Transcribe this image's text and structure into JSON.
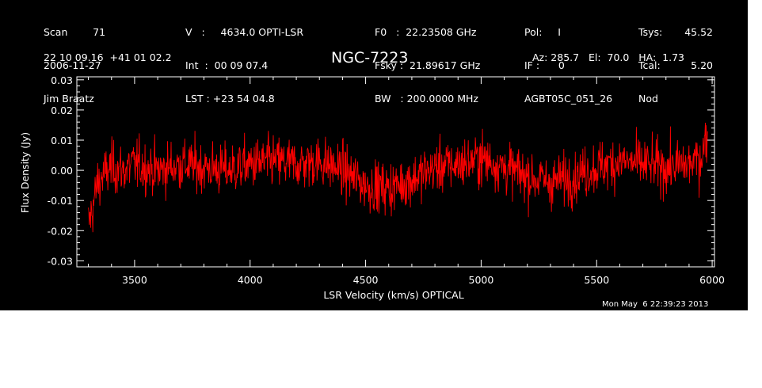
{
  "header": {
    "col1": [
      "Scan        71",
      "2006-11-27",
      "Jim Braatz"
    ],
    "col2": [
      "V   :     4634.0 OPTI-LSR",
      "Int  :  00 09 07.4",
      "LST : +23 54 04.8"
    ],
    "col3": [
      "F0   :  22.23508 GHz",
      "Fsky :  21.89617 GHz",
      "BW   : 200.0000 MHz"
    ],
    "col4": [
      "Pol:     I",
      "IF :      0",
      "AGBT05C_051_26"
    ],
    "col5_labels": [
      "Tsys:",
      "Tcal:",
      "Nod"
    ],
    "col5_values": [
      "45.52",
      "5.20",
      ""
    ],
    "coords": "22 10 09.16  +41 01 02.2",
    "title": "NGC-7223",
    "azelha": "Az: 285.7   El:  70.0   HA:  1.73"
  },
  "footer": {
    "timestamp": "Mon May  6 22:39:23 2013"
  },
  "colors": {
    "background": "#000000",
    "foreground": "#ffffff",
    "series": "#ff0000"
  },
  "chart_data": {
    "type": "line",
    "title": "NGC-7223",
    "xlabel": "LSR Velocity (km/s) OPTICAL",
    "ylabel": "Flux Density (Jy)",
    "xlim": [
      3250,
      6010
    ],
    "ylim": [
      -0.032,
      0.031
    ],
    "x_ticks": [
      3500,
      4000,
      4500,
      5000,
      5500,
      6000
    ],
    "y_ticks": [
      -0.03,
      -0.02,
      -0.01,
      0.0,
      0.01,
      0.02,
      0.03
    ],
    "x_tick_labels": [
      "3500",
      "4000",
      "4500",
      "5000",
      "5500",
      "6000"
    ],
    "y_tick_labels": [
      "-0.03",
      "-0.02",
      "-0.01",
      "0.00",
      "0.01",
      "0.02",
      "0.03"
    ],
    "grid": false,
    "series": [
      {
        "x": [
          3300,
          3320,
          3340,
          3400,
          3450,
          3500,
          3600,
          3700,
          3800,
          3900,
          4000,
          4100,
          4200,
          4300,
          4400,
          4500,
          4600,
          4700,
          4800,
          4900,
          5000,
          5100,
          5200,
          5300,
          5400,
          5500,
          5600,
          5700,
          5800,
          5900,
          5950,
          5980
        ],
        "y": [
          -0.018,
          -0.012,
          -0.004,
          0.001,
          0.0,
          0.002,
          0.0,
          0.002,
          0.001,
          0.0,
          0.002,
          0.003,
          0.002,
          0.003,
          0.0,
          -0.005,
          -0.006,
          -0.003,
          0.001,
          0.002,
          0.004,
          0.001,
          -0.002,
          -0.004,
          -0.002,
          0.001,
          0.003,
          0.002,
          0.001,
          0.002,
          0.004,
          0.012
        ],
        "noise_sigma": 0.006
      }
    ]
  }
}
